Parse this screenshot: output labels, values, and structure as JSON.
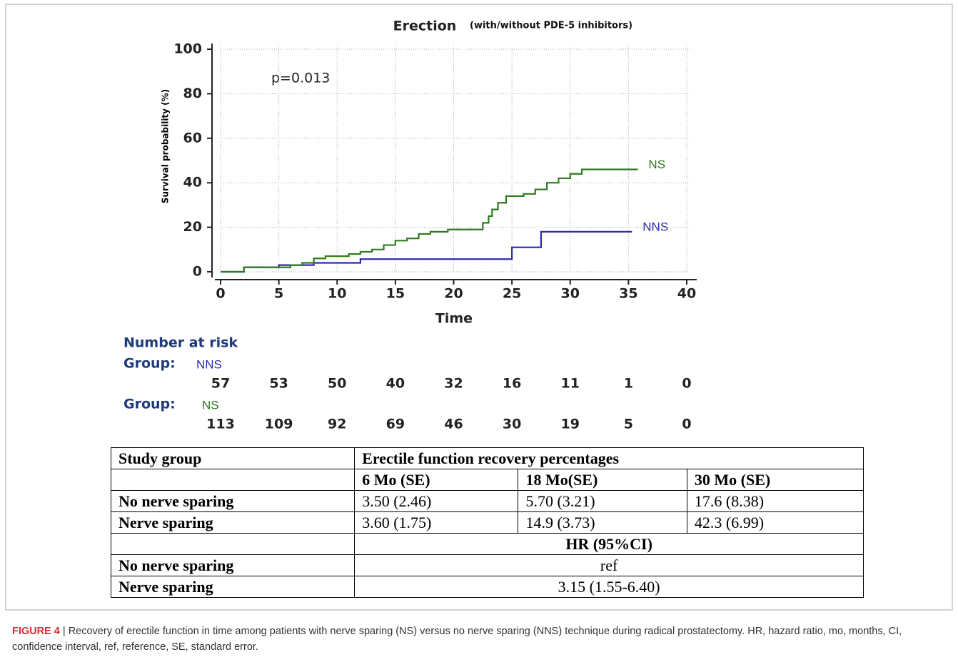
{
  "chart_data": {
    "type": "step",
    "title": "Erection",
    "subtitle": "(with/without PDE-5 inhibitors)",
    "ylabel": "Survival probability (%)",
    "xlabel": "Time",
    "annotation": "p=0.013",
    "xlim": [
      0,
      40
    ],
    "ylim": [
      0,
      100
    ],
    "xticks": [
      0,
      5,
      10,
      15,
      20,
      25,
      30,
      35,
      40
    ],
    "yticks": [
      0,
      20,
      40,
      60,
      80,
      100
    ],
    "grid": true,
    "series": [
      {
        "name": "NNS",
        "color": "#2b2bb0",
        "x": [
          0,
          2,
          5,
          8,
          12,
          25,
          27.5,
          35.3
        ],
        "values": [
          0,
          2,
          3,
          4,
          5.7,
          11,
          18,
          18
        ]
      },
      {
        "name": "NS",
        "color": "#2e7a1f",
        "x": [
          0,
          2,
          6,
          7,
          8,
          9,
          11,
          12,
          13,
          14,
          15,
          16,
          17,
          18,
          19.5,
          22.5,
          23,
          23.3,
          23.8,
          24.5,
          26,
          27,
          28,
          29,
          30,
          31,
          35.8
        ],
        "values": [
          0,
          2,
          3,
          4,
          6,
          7,
          8,
          9,
          10,
          12,
          14,
          15,
          17,
          18,
          19,
          22,
          25,
          28,
          31,
          34,
          35,
          37,
          40,
          42,
          44,
          46,
          46
        ]
      }
    ]
  },
  "risk_table": {
    "title": "Number at risk",
    "groups": [
      {
        "label": "Group:",
        "name": "NNS",
        "values": [
          57,
          53,
          50,
          40,
          32,
          16,
          11,
          1,
          0
        ]
      },
      {
        "label": "Group:",
        "name": "NS",
        "values": [
          113,
          109,
          92,
          69,
          46,
          30,
          19,
          5,
          0
        ]
      }
    ]
  },
  "table": {
    "header": [
      "Study group",
      "Erectile function recovery percentages"
    ],
    "subheader": [
      "6 Mo (SE)",
      "18 Mo(SE)",
      "30 Mo (SE)"
    ],
    "rows": [
      [
        "No nerve sparing",
        "3.50 (2.46)",
        "5.70 (3.21)",
        "17.6 (8.38)"
      ],
      [
        "Nerve sparing",
        "3.60 (1.75)",
        "14.9 (3.73)",
        "42.3 (6.99)"
      ]
    ],
    "hr_header": "HR (95%CI)",
    "hr_rows": [
      [
        "No nerve sparing",
        "ref"
      ],
      [
        "Nerve sparing",
        "3.15 (1.55-6.40)"
      ]
    ]
  },
  "caption": {
    "label": "FIGURE 4",
    "text": " | Recovery of erectile function in time among patients with nerve sparing (NS) versus no nerve sparing (NNS) technique during radical prostatectomy. HR, hazard ratio, mo, months, CI, confidence interval, ref, reference, SE, standard error."
  }
}
